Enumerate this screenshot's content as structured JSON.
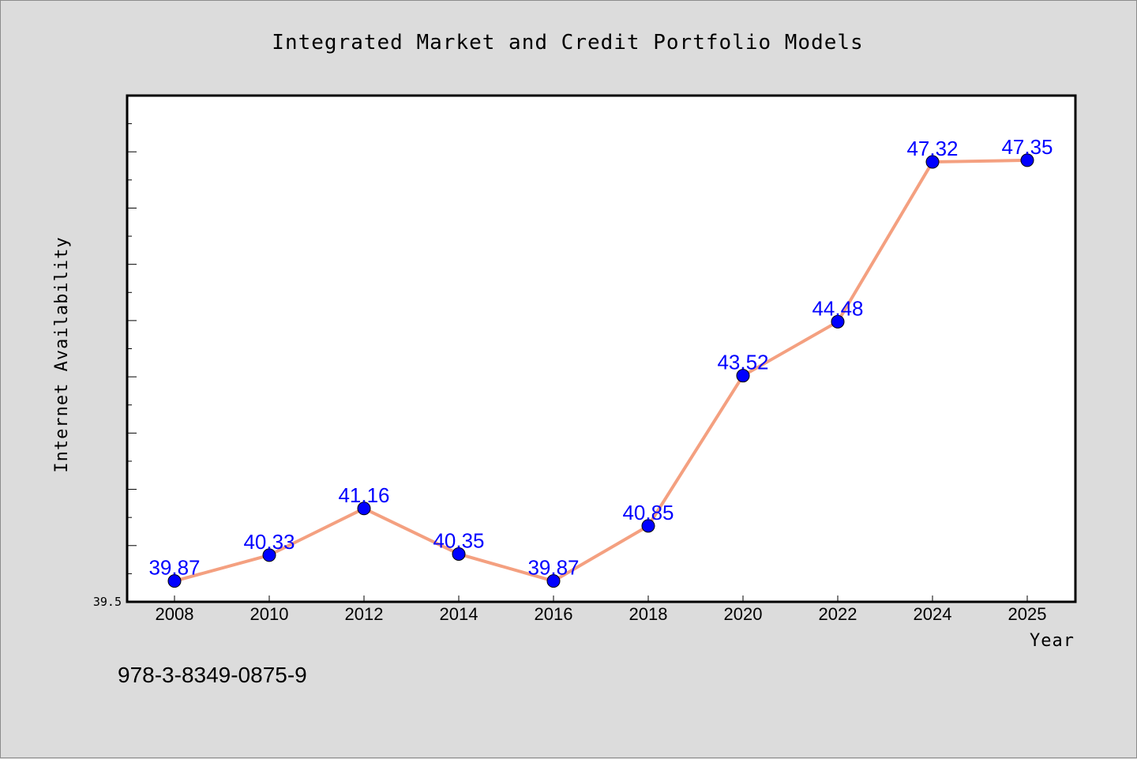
{
  "chart_data": {
    "type": "line",
    "title": "Integrated Market and Credit Portfolio Models",
    "xlabel": "Year",
    "ylabel": "Internet Availability",
    "categories": [
      "2008",
      "2010",
      "2012",
      "2014",
      "2016",
      "2018",
      "2020",
      "2022",
      "2024",
      "2025"
    ],
    "series": [
      {
        "values": [
          39.87,
          40.33,
          41.16,
          40.35,
          39.87,
          40.85,
          43.52,
          44.48,
          47.32,
          47.35
        ],
        "labels": [
          "39.87",
          "40.33",
          "41.16",
          "40.35",
          "39.87",
          "40.85",
          "43.52",
          "44.48",
          "47.32",
          "47.35"
        ]
      }
    ],
    "ylim": [
      39.5,
      48.5
    ],
    "ytick_labels": [
      "39.5"
    ],
    "grid": false,
    "line_color": "#f4a080",
    "marker_color": "#0000ff",
    "label_color": "#0000ff"
  },
  "footer": {
    "isbn": "978-3-8349-0875-9"
  }
}
